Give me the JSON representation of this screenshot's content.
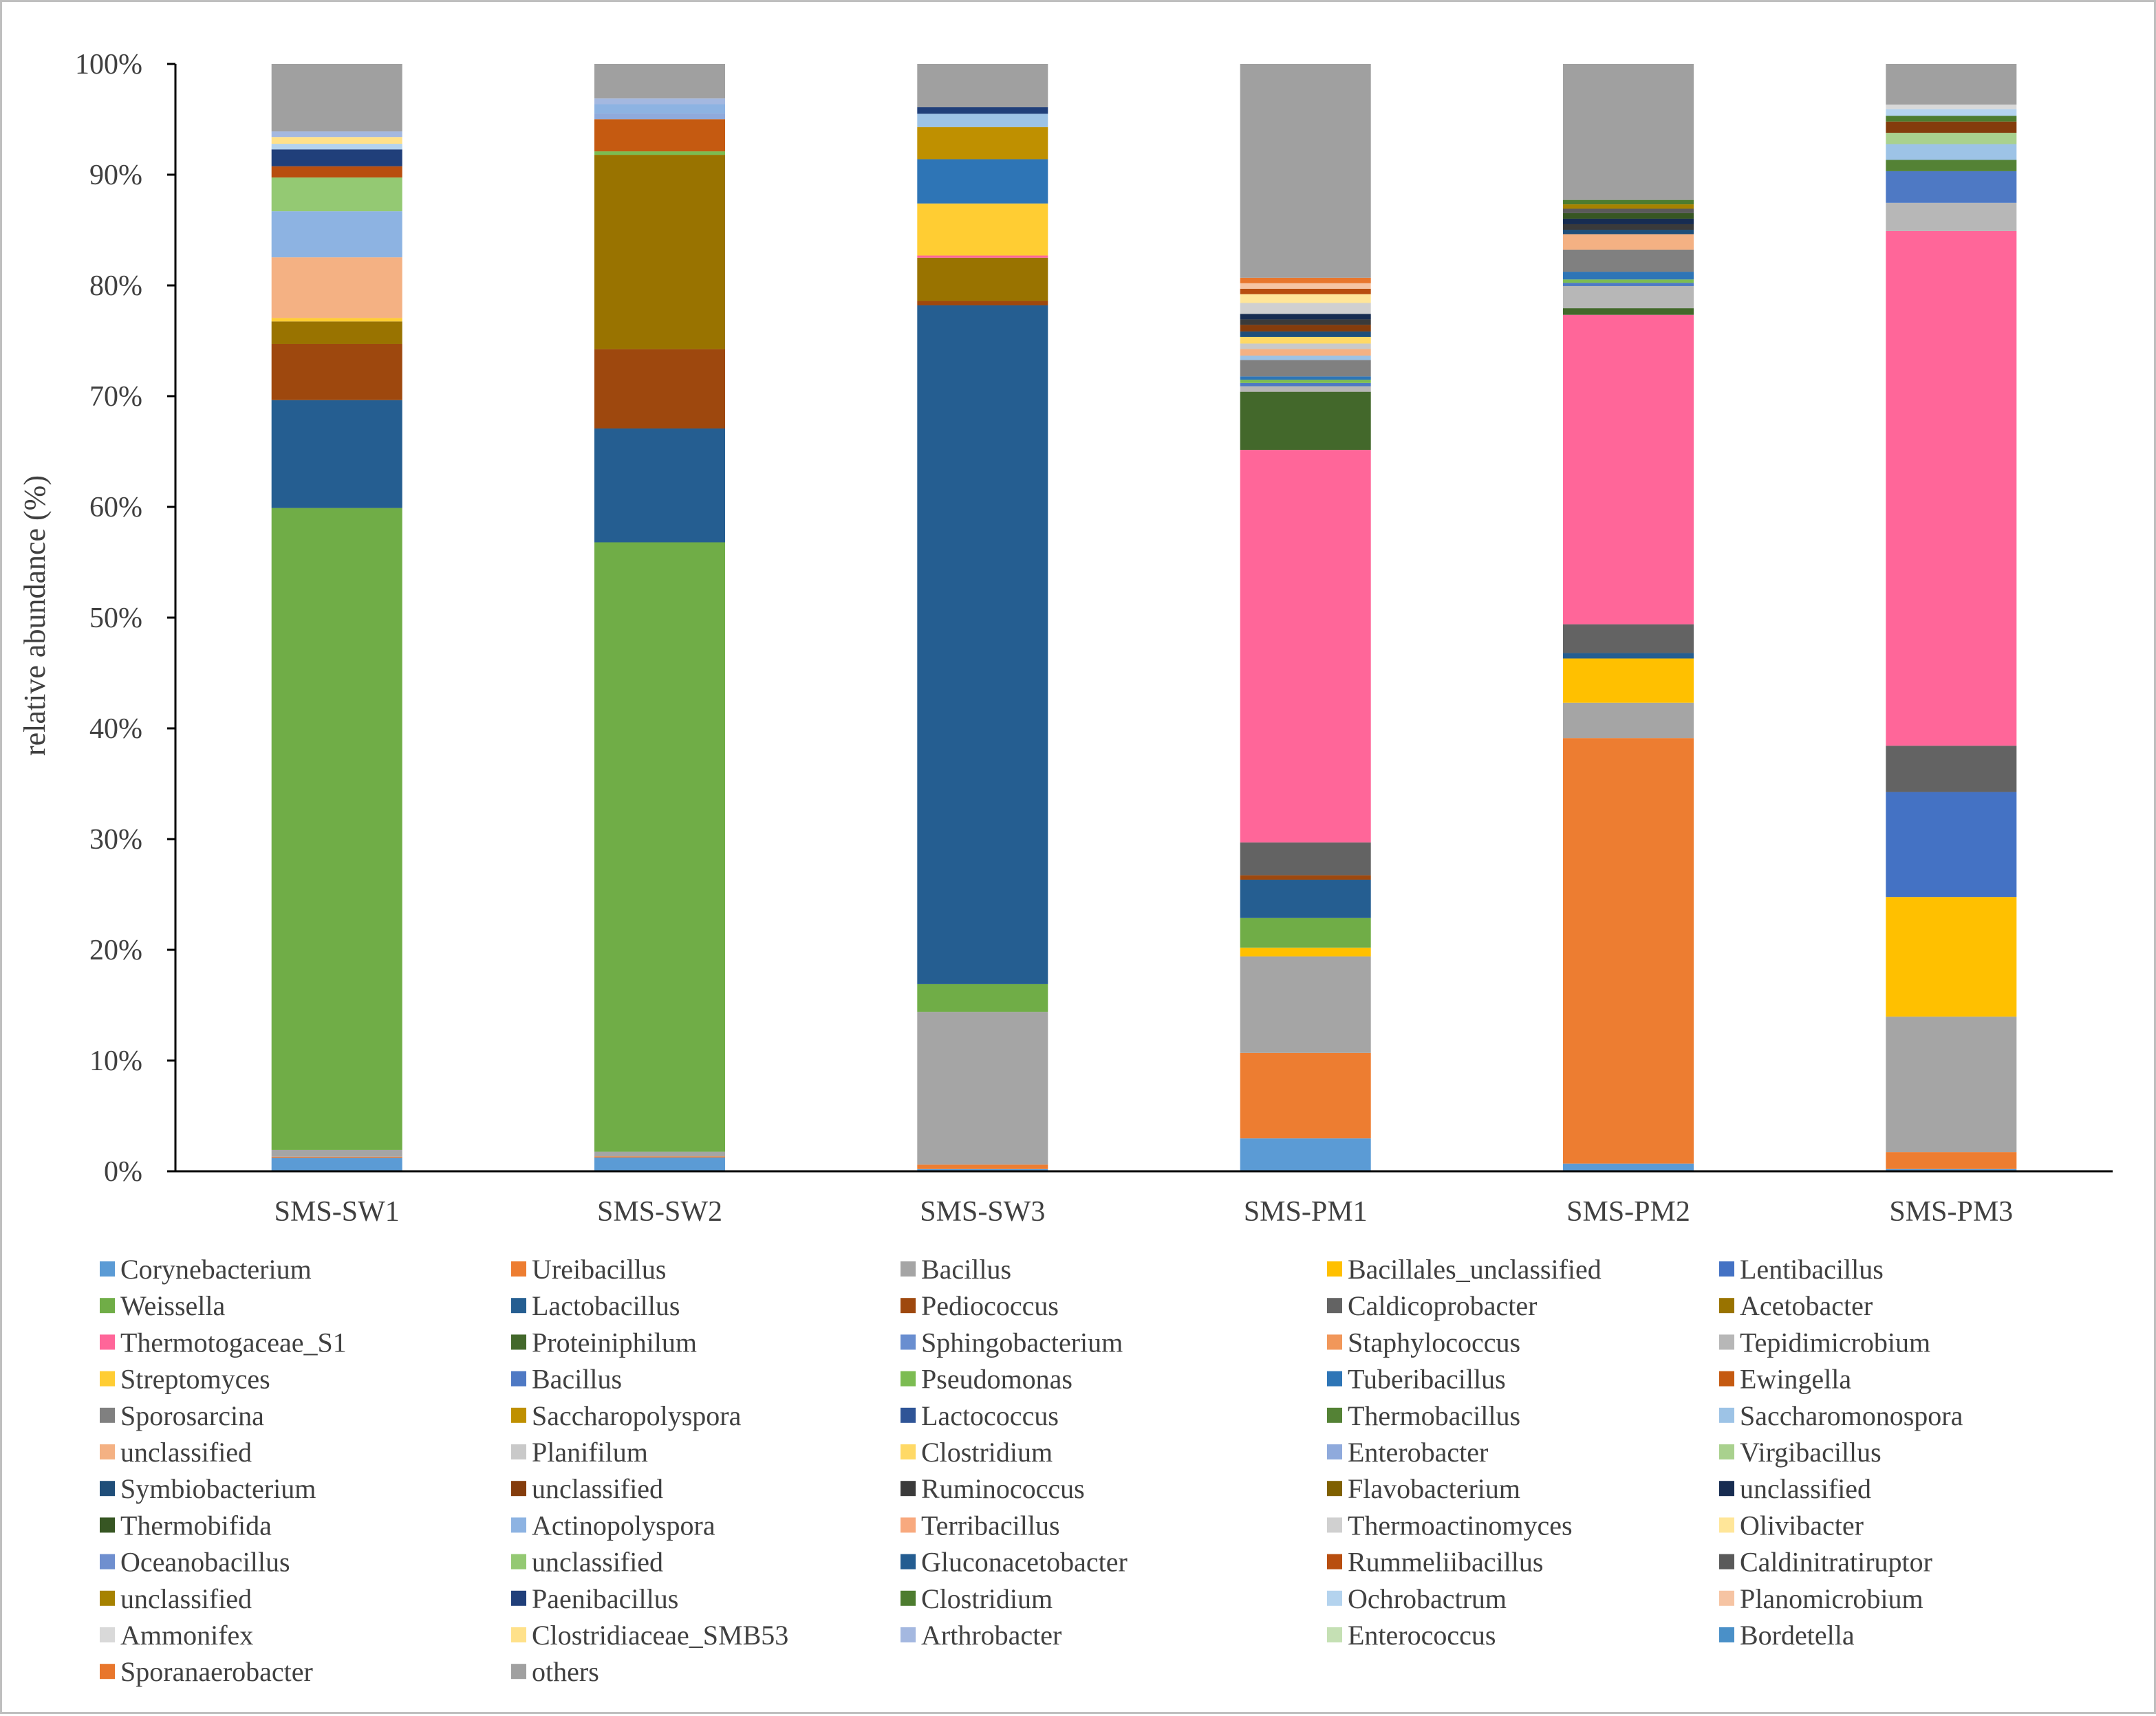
{
  "chart_data": {
    "type": "bar",
    "stacked": true,
    "normalized": true,
    "title": "",
    "xlabel": "",
    "ylabel": "relative abundance (%)",
    "ylim": [
      0,
      100
    ],
    "ytick_values": [
      0,
      10,
      20,
      30,
      40,
      50,
      60,
      70,
      80,
      90,
      100
    ],
    "ytick_labels": [
      "0%",
      "10%",
      "20%",
      "30%",
      "40%",
      "50%",
      "60%",
      "70%",
      "80%",
      "90%",
      "100%"
    ],
    "grid": false,
    "legend_position": "bottom",
    "categories": [
      "SMS-SW1",
      "SMS-SW2",
      "SMS-SW3",
      "SMS-PM1",
      "SMS-PM2",
      "SMS-PM3"
    ],
    "series": [
      {
        "name": "Corynebacterium",
        "color": "#5b9bd5",
        "values": [
          1.2,
          1.2,
          0.2,
          3.0,
          0.7,
          0.2
        ]
      },
      {
        "name": "Ureibacillus",
        "color": "#ed7d31",
        "values": [
          0.1,
          0.1,
          0.4,
          7.8,
          38.5,
          1.5
        ]
      },
      {
        "name": "Bacillus",
        "color": "#a5a5a5",
        "values": [
          0.6,
          0.4,
          13.8,
          8.8,
          3.2,
          12.0
        ]
      },
      {
        "name": "Bacillales_unclassified",
        "color": "#ffc000",
        "values": [
          0.0,
          0.0,
          0.0,
          0.8,
          4.0,
          10.6
        ]
      },
      {
        "name": "Lentibacillus",
        "color": "#4472c4",
        "values": [
          0.0,
          0.0,
          0.0,
          0.0,
          0.0,
          9.3
        ]
      },
      {
        "name": "Weissella",
        "color": "#70ad47",
        "values": [
          57.1,
          53.0,
          2.5,
          2.7,
          0.0,
          0.0
        ]
      },
      {
        "name": "Lactobacillus",
        "color": "#255e91",
        "values": [
          9.6,
          9.9,
          61.3,
          3.5,
          0.5,
          0.0
        ]
      },
      {
        "name": "Pediococcus",
        "color": "#9e480e",
        "values": [
          5.0,
          6.9,
          0.4,
          0.4,
          0.0,
          0.0
        ]
      },
      {
        "name": "Caldicoprobacter",
        "color": "#636363",
        "values": [
          0.0,
          0.0,
          0.0,
          3.0,
          2.6,
          4.1
        ]
      },
      {
        "name": "Acetobacter",
        "color": "#997300",
        "values": [
          2.0,
          16.9,
          3.9,
          0.0,
          0.0,
          0.0
        ]
      },
      {
        "name": "Thermotogaceae_S1",
        "color": "#ff6699",
        "values": [
          0.0,
          0.0,
          0.2,
          35.8,
          28.0,
          45.6
        ]
      },
      {
        "name": "Proteiniphilum",
        "color": "#43682b",
        "values": [
          0.0,
          0.0,
          0.0,
          5.3,
          0.6,
          0.0
        ]
      },
      {
        "name": "Sphingobacterium",
        "color": "#698ed0",
        "values": [
          0.0,
          0.0,
          0.0,
          0.0,
          0.0,
          0.0
        ]
      },
      {
        "name": "Staphylococcus",
        "color": "#f1975a",
        "values": [
          0.0,
          0.0,
          0.0,
          0.0,
          0.0,
          0.0
        ]
      },
      {
        "name": "Tepidimicrobium",
        "color": "#b7b7b7",
        "values": [
          0.0,
          0.0,
          0.0,
          0.5,
          2.0,
          2.5
        ]
      },
      {
        "name": "Streptomyces",
        "color": "#ffcd33",
        "values": [
          0.3,
          0.0,
          4.7,
          0.0,
          0.0,
          0.0
        ]
      },
      {
        "name": "Bacillus",
        "color": "#4e79c4",
        "values": [
          0.0,
          0.0,
          0.0,
          0.3,
          0.3,
          2.8
        ]
      },
      {
        "name": "Pseudomonas",
        "color": "#7cbc52",
        "values": [
          0.0,
          0.3,
          0.0,
          0.3,
          0.3,
          0.0
        ]
      },
      {
        "name": "Tuberibacillus",
        "color": "#2e75b6",
        "values": [
          0.0,
          0.0,
          4.0,
          0.3,
          0.7,
          0.0
        ]
      },
      {
        "name": "Ewingella",
        "color": "#c55a11",
        "values": [
          0.0,
          2.8,
          0.0,
          0.0,
          0.0,
          0.0
        ]
      },
      {
        "name": "Sporosarcina",
        "color": "#808080",
        "values": [
          0.0,
          0.0,
          0.0,
          1.5,
          2.0,
          0.0
        ]
      },
      {
        "name": "Saccharopolyspora",
        "color": "#bf9000",
        "values": [
          0.0,
          0.0,
          2.9,
          0.0,
          0.0,
          0.0
        ]
      },
      {
        "name": "Lactococcus",
        "color": "#2f5597",
        "values": [
          0.0,
          0.0,
          0.0,
          0.0,
          0.0,
          0.0
        ]
      },
      {
        "name": "Thermobacillus",
        "color": "#548235",
        "values": [
          0.0,
          0.0,
          0.0,
          0.0,
          0.0,
          1.0
        ]
      },
      {
        "name": "Saccharomonospora",
        "color": "#9dc3e6",
        "values": [
          0.0,
          0.0,
          1.2,
          0.4,
          0.0,
          1.4
        ]
      },
      {
        "name": "unclassified",
        "color": "#f4b183",
        "values": [
          5.4,
          0.0,
          0.0,
          0.6,
          1.4,
          0.0
        ]
      },
      {
        "name": "Planifilum",
        "color": "#c9c9c9",
        "values": [
          0.0,
          0.0,
          0.0,
          0.5,
          0.0,
          0.0
        ]
      },
      {
        "name": "Clostridium",
        "color": "#ffd966",
        "values": [
          0.0,
          0.0,
          0.0,
          0.6,
          0.0,
          0.0
        ]
      },
      {
        "name": "Enterobacter",
        "color": "#8faadc",
        "values": [
          0.0,
          0.5,
          0.0,
          0.0,
          0.0,
          0.0
        ]
      },
      {
        "name": "Virgibacillus",
        "color": "#a9d18e",
        "values": [
          0.0,
          0.0,
          0.0,
          0.0,
          0.0,
          1.0
        ]
      },
      {
        "name": "Symbiobacterium",
        "color": "#1f4e79",
        "values": [
          0.0,
          0.0,
          0.0,
          0.5,
          0.4,
          0.0
        ]
      },
      {
        "name": "unclassified",
        "color": "#843c0c",
        "values": [
          0.0,
          0.0,
          0.0,
          0.6,
          0.0,
          1.0
        ]
      },
      {
        "name": "Ruminococcus",
        "color": "#3a3a3a",
        "values": [
          0.0,
          0.0,
          0.0,
          0.5,
          0.5,
          0.0
        ]
      },
      {
        "name": "Flavobacterium",
        "color": "#7f6000",
        "values": [
          0.0,
          0.0,
          0.0,
          0.0,
          0.0,
          0.0
        ]
      },
      {
        "name": "unclassified",
        "color": "#172c51",
        "values": [
          0.0,
          0.0,
          0.0,
          0.5,
          0.5,
          0.0
        ]
      },
      {
        "name": "Thermobifida",
        "color": "#375623",
        "values": [
          0.0,
          0.0,
          0.0,
          0.0,
          0.5,
          0.0
        ]
      },
      {
        "name": "Actinopolyspora",
        "color": "#8db3e2",
        "values": [
          4.1,
          0.8,
          0.0,
          0.0,
          0.0,
          0.0
        ]
      },
      {
        "name": "Terribacillus",
        "color": "#f8a97e",
        "values": [
          0.0,
          0.0,
          0.0,
          0.0,
          0.0,
          0.0
        ]
      },
      {
        "name": "Thermoactinomyces",
        "color": "#d0d0d0",
        "values": [
          0.0,
          0.0,
          0.0,
          1.0,
          0.0,
          0.0
        ]
      },
      {
        "name": "Olivibacter",
        "color": "#ffe699",
        "values": [
          0.0,
          0.0,
          0.0,
          0.8,
          0.0,
          0.0
        ]
      },
      {
        "name": "Oceanobacillus",
        "color": "#6f8fcf",
        "values": [
          0.0,
          0.0,
          0.0,
          0.0,
          0.0,
          0.0
        ]
      },
      {
        "name": "unclassified",
        "color": "#94c973",
        "values": [
          3.0,
          0.0,
          0.0,
          0.0,
          0.0,
          0.0
        ]
      },
      {
        "name": "Gluconacetobacter",
        "color": "#245d91",
        "values": [
          0.0,
          0.0,
          0.0,
          0.0,
          0.0,
          0.0
        ]
      },
      {
        "name": "Rummeliibacillus",
        "color": "#b84e0f",
        "values": [
          1.0,
          0.0,
          0.0,
          0.5,
          0.0,
          0.0
        ]
      },
      {
        "name": "Caldinitratiruptor",
        "color": "#5a5a5a",
        "values": [
          0.0,
          0.0,
          0.0,
          0.0,
          0.4,
          0.0
        ]
      },
      {
        "name": "unclassified",
        "color": "#a68200",
        "values": [
          0.0,
          0.0,
          0.0,
          0.0,
          0.4,
          0.0
        ]
      },
      {
        "name": "Paenibacillus",
        "color": "#203f7a",
        "values": [
          1.5,
          0.0,
          0.6,
          0.0,
          0.0,
          0.0
        ]
      },
      {
        "name": "Clostridium",
        "color": "#4d7c2f",
        "values": [
          0.0,
          0.0,
          0.0,
          0.0,
          0.4,
          0.5
        ]
      },
      {
        "name": "Ochrobactrum",
        "color": "#b4d3ee",
        "values": [
          0.5,
          0.0,
          0.0,
          0.0,
          0.0,
          0.6
        ]
      },
      {
        "name": "Planomicrobium",
        "color": "#f6c4a3",
        "values": [
          0.0,
          0.0,
          0.0,
          0.5,
          0.0,
          0.0
        ]
      },
      {
        "name": "Ammonifex",
        "color": "#d9d9d9",
        "values": [
          0.0,
          0.0,
          0.0,
          0.0,
          0.0,
          0.4
        ]
      },
      {
        "name": "Clostridiaceae_SMB53",
        "color": "#ffe18a",
        "values": [
          0.6,
          0.0,
          0.0,
          0.0,
          0.0,
          0.0
        ]
      },
      {
        "name": "Arthrobacter",
        "color": "#a4b8e0",
        "values": [
          0.5,
          0.5,
          0.0,
          0.0,
          0.0,
          0.0
        ]
      },
      {
        "name": "Enterococcus",
        "color": "#c5e0b4",
        "values": [
          0.0,
          0.0,
          0.0,
          0.0,
          0.0,
          0.0
        ]
      },
      {
        "name": "Bordetella",
        "color": "#4a90c8",
        "values": [
          0.0,
          0.0,
          0.0,
          0.0,
          0.0,
          0.0
        ]
      },
      {
        "name": "Sporanaerobacter",
        "color": "#e8762c",
        "values": [
          0.0,
          0.0,
          0.0,
          0.5,
          0.0,
          0.0
        ]
      },
      {
        "name": "others",
        "color": "#a0a0a0",
        "values": [
          6.0,
          3.0,
          3.9,
          19.5,
          12.3,
          3.6
        ]
      }
    ]
  },
  "colors": {
    "axis": "#000000",
    "text": "#404040",
    "frame": "#bfbfbf",
    "background": "#ffffff"
  }
}
